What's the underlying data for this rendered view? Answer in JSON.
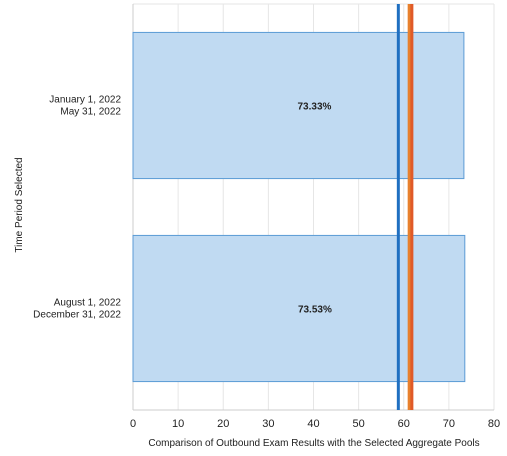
{
  "chart_data": {
    "type": "bar",
    "orientation": "horizontal",
    "categories": [
      [
        "January 1, 2022",
        "May 31, 2022"
      ],
      [
        "August 1, 2022",
        "December 31, 2022"
      ]
    ],
    "values": [
      73.33,
      73.53
    ],
    "value_labels": [
      "73.33%",
      "73.53%"
    ],
    "xlabel": "Comparison of Outbound Exam Results with the Selected Aggregate Pools",
    "ylabel": "Time Period Selected",
    "xlim": [
      0,
      80
    ],
    "xticks": [
      "0",
      "10",
      "20",
      "30",
      "40",
      "50",
      "60",
      "70",
      "80"
    ],
    "grid": true,
    "reference_lines": [
      {
        "value": 58.8,
        "color": "#1f6fc1"
      },
      {
        "value": 61.2,
        "color": "#e8802c"
      },
      {
        "value": 61.8,
        "color": "#e05a28"
      }
    ],
    "colors": {
      "bar_fill": "#c0daf2",
      "bar_stroke": "#5b9bd5",
      "grid": "#e6e6e6"
    }
  }
}
